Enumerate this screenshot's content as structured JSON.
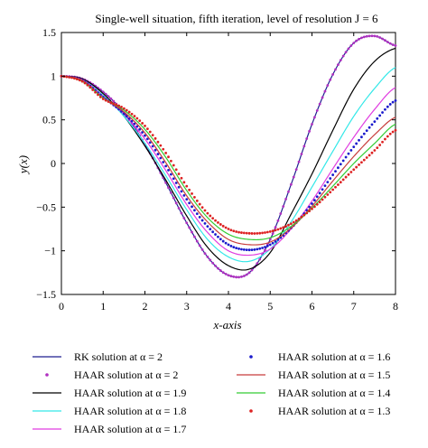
{
  "chart_data": {
    "type": "line",
    "title": "Single-well situation, fifth iteration, level of resolution J = 6",
    "xlabel": "x-axis",
    "ylabel": "y(x)",
    "xlim": [
      0,
      8
    ],
    "ylim": [
      -1.5,
      1.5
    ],
    "x_ticks": [
      "0",
      "1",
      "2",
      "3",
      "4",
      "5",
      "6",
      "7",
      "8"
    ],
    "y_ticks": [
      "1.5",
      "1",
      "0.5",
      "0",
      "−0.5",
      "−1",
      "−1.5"
    ],
    "grid": false,
    "legend_placement": "bottom, two columns",
    "x": [
      0,
      0.5,
      1,
      1.5,
      2,
      2.5,
      3,
      3.5,
      4,
      4.5,
      5,
      5.5,
      6,
      6.5,
      7,
      7.5,
      8
    ],
    "series": [
      {
        "name": "RK solution at α = 2",
        "color": "#1f1f8f",
        "style": "solid",
        "values": [
          1.0,
          0.97,
          0.82,
          0.58,
          0.22,
          -0.22,
          -0.68,
          -1.07,
          -1.28,
          -1.25,
          -0.87,
          -0.24,
          0.45,
          1.02,
          1.38,
          1.46,
          1.35
        ]
      },
      {
        "name": "HAAR solution at α = 2",
        "color": "#b030c0",
        "style": "dotted",
        "values": [
          1.0,
          0.97,
          0.82,
          0.58,
          0.22,
          -0.22,
          -0.68,
          -1.07,
          -1.28,
          -1.25,
          -0.87,
          -0.24,
          0.45,
          1.02,
          1.38,
          1.46,
          1.35
        ]
      },
      {
        "name": "HAAR solution at α = 1.9",
        "color": "#000000",
        "style": "solid",
        "values": [
          1.0,
          0.97,
          0.8,
          0.54,
          0.2,
          -0.19,
          -0.6,
          -0.96,
          -1.17,
          -1.21,
          -1.02,
          -0.58,
          -0.12,
          0.38,
          0.85,
          1.17,
          1.32
        ]
      },
      {
        "name": "HAAR solution at α = 1.8",
        "color": "#33e8e8",
        "style": "solid",
        "values": [
          1.0,
          0.96,
          0.78,
          0.54,
          0.23,
          -0.14,
          -0.53,
          -0.87,
          -1.07,
          -1.12,
          -0.98,
          -0.67,
          -0.27,
          0.14,
          0.54,
          0.86,
          1.1
        ]
      },
      {
        "name": "HAAR solution at α = 1.7",
        "color": "#e03ce0",
        "style": "solid",
        "values": [
          1.0,
          0.96,
          0.77,
          0.56,
          0.28,
          -0.08,
          -0.47,
          -0.79,
          -1.0,
          -1.05,
          -0.98,
          -0.75,
          -0.43,
          -0.06,
          0.3,
          0.62,
          0.87
        ]
      },
      {
        "name": "HAAR solution at α = 1.6",
        "color": "#1a1acc",
        "style": "dotted",
        "values": [
          1.0,
          0.95,
          0.76,
          0.57,
          0.32,
          -0.03,
          -0.41,
          -0.72,
          -0.93,
          -0.99,
          -0.93,
          -0.74,
          -0.46,
          -0.13,
          0.19,
          0.48,
          0.72
        ]
      },
      {
        "name": "HAAR solution at α = 1.5",
        "color": "#c83c3c",
        "style": "solid",
        "values": [
          1.0,
          0.95,
          0.75,
          0.59,
          0.35,
          0.01,
          -0.37,
          -0.67,
          -0.87,
          -0.93,
          -0.9,
          -0.74,
          -0.49,
          -0.2,
          0.08,
          0.33,
          0.53
        ]
      },
      {
        "name": "HAAR solution at α = 1.4",
        "color": "#33cc33",
        "style": "solid",
        "values": [
          1.0,
          0.94,
          0.75,
          0.61,
          0.39,
          0.07,
          -0.31,
          -0.62,
          -0.81,
          -0.87,
          -0.85,
          -0.72,
          -0.51,
          -0.26,
          0.0,
          0.23,
          0.45
        ]
      },
      {
        "name": "HAAR solution at α = 1.3",
        "color": "#dd2222",
        "style": "dotted",
        "values": [
          1.0,
          0.94,
          0.74,
          0.63,
          0.43,
          0.12,
          -0.26,
          -0.57,
          -0.75,
          -0.8,
          -0.78,
          -0.69,
          -0.52,
          -0.3,
          -0.07,
          0.15,
          0.38
        ]
      }
    ]
  }
}
